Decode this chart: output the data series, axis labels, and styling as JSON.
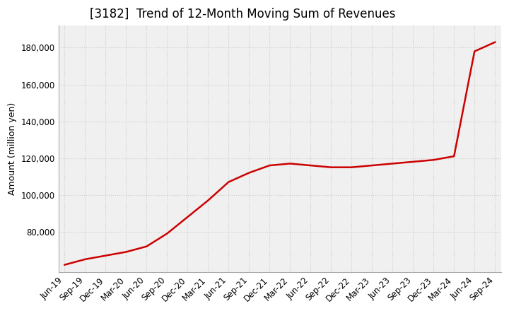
{
  "title": "[3182]  Trend of 12-Month Moving Sum of Revenues",
  "ylabel": "Amount (million yen)",
  "background_color": "#ffffff",
  "plot_bg_color": "#f0f0f0",
  "grid_color": "#cccccc",
  "line_color": "#cc0000",
  "x_labels": [
    "Jun-19",
    "Sep-19",
    "Dec-19",
    "Mar-20",
    "Jun-20",
    "Sep-20",
    "Dec-20",
    "Mar-21",
    "Jun-21",
    "Sep-21",
    "Dec-21",
    "Mar-22",
    "Jun-22",
    "Sep-22",
    "Dec-22",
    "Mar-23",
    "Jun-23",
    "Sep-23",
    "Dec-23",
    "Mar-24",
    "Jun-24",
    "Sep-24"
  ],
  "values": [
    62000,
    65000,
    67000,
    69000,
    72000,
    79000,
    88000,
    97000,
    107000,
    112000,
    116000,
    117000,
    116000,
    115000,
    115000,
    116000,
    117000,
    118000,
    119000,
    121000,
    178000,
    183000
  ],
  "ylim": [
    58000,
    192000
  ],
  "yticks": [
    80000,
    100000,
    120000,
    140000,
    160000,
    180000
  ],
  "title_fontsize": 12,
  "label_fontsize": 9,
  "tick_fontsize": 8.5
}
